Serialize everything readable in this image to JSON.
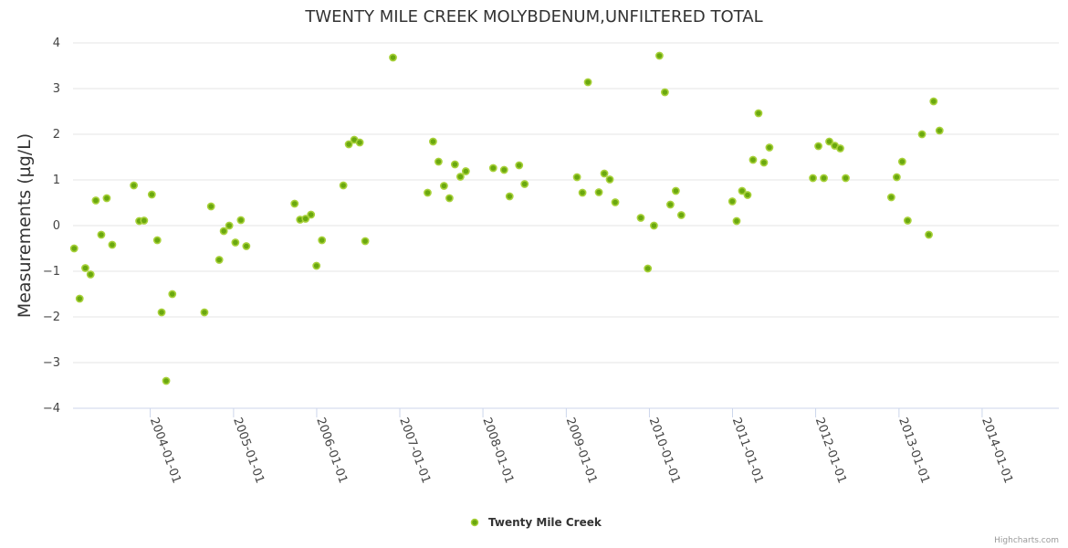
{
  "credits": "Highcharts.com",
  "colors": {
    "marker_fill": "#6aa80f",
    "marker_stroke": "#a8d13a",
    "grid": "#e6e6e6",
    "axis": "#ccd6eb"
  },
  "chart_data": {
    "type": "scatter",
    "title": "TWENTY MILE CREEK MOLYBDENUM,UNFILTERED TOTAL",
    "ylabel": "Measurements (µg/L)",
    "xlabel": "",
    "ylim": [
      -4,
      4
    ],
    "yticks": [
      "4",
      "3",
      "2",
      "1",
      "0",
      "−1",
      "−2",
      "−3",
      "−4"
    ],
    "xlim": [
      "2003-01-27",
      "2014-12-04"
    ],
    "xtick_labels": [
      "2004-01-01",
      "2005-01-01",
      "2006-01-01",
      "2007-01-01",
      "2008-01-01",
      "2009-01-01",
      "2010-01-01",
      "2011-01-01",
      "2012-01-01",
      "2013-01-01",
      "2014-01-01"
    ],
    "grid": true,
    "legend_position": "bottom-center",
    "series": [
      {
        "name": "Twenty Mile Creek",
        "points": [
          [
            "2003-02-01",
            -0.5
          ],
          [
            "2003-02-25",
            -1.6
          ],
          [
            "2003-03-22",
            -0.93
          ],
          [
            "2003-04-14",
            -1.07
          ],
          [
            "2003-05-07",
            0.55
          ],
          [
            "2003-05-31",
            -0.2
          ],
          [
            "2003-06-24",
            0.6
          ],
          [
            "2003-07-18",
            -0.42
          ],
          [
            "2003-10-21",
            0.88
          ],
          [
            "2003-11-14",
            0.1
          ],
          [
            "2003-12-05",
            0.11
          ],
          [
            "2004-01-08",
            0.68
          ],
          [
            "2004-02-01",
            -0.32
          ],
          [
            "2004-02-20",
            -1.9
          ],
          [
            "2004-03-11",
            -3.4
          ],
          [
            "2004-04-07",
            -1.5
          ],
          [
            "2004-08-26",
            -1.9
          ],
          [
            "2004-09-24",
            0.42
          ],
          [
            "2004-10-30",
            -0.75
          ],
          [
            "2004-11-19",
            -0.12
          ],
          [
            "2004-12-13",
            0.0
          ],
          [
            "2005-01-09",
            -0.37
          ],
          [
            "2005-02-02",
            0.12
          ],
          [
            "2005-02-26",
            -0.45
          ],
          [
            "2005-09-26",
            0.48
          ],
          [
            "2005-10-20",
            0.13
          ],
          [
            "2005-11-13",
            0.15
          ],
          [
            "2005-12-07",
            0.24
          ],
          [
            "2005-12-31",
            -0.88
          ],
          [
            "2006-01-24",
            -0.32
          ],
          [
            "2006-04-28",
            0.88
          ],
          [
            "2006-05-22",
            1.78
          ],
          [
            "2006-06-15",
            1.88
          ],
          [
            "2006-07-09",
            1.82
          ],
          [
            "2006-08-02",
            -0.34
          ],
          [
            "2006-12-02",
            3.68
          ],
          [
            "2007-05-03",
            0.72
          ],
          [
            "2007-05-27",
            1.84
          ],
          [
            "2007-06-20",
            1.4
          ],
          [
            "2007-07-14",
            0.87
          ],
          [
            "2007-08-07",
            0.6
          ],
          [
            "2007-08-31",
            1.34
          ],
          [
            "2007-09-24",
            1.07
          ],
          [
            "2007-10-18",
            1.19
          ],
          [
            "2008-02-15",
            1.26
          ],
          [
            "2008-04-03",
            1.22
          ],
          [
            "2008-04-27",
            0.64
          ],
          [
            "2008-06-08",
            1.32
          ],
          [
            "2008-07-02",
            0.91
          ],
          [
            "2009-02-17",
            1.06
          ],
          [
            "2009-03-13",
            0.72
          ],
          [
            "2009-04-06",
            3.14
          ],
          [
            "2009-05-24",
            0.73
          ],
          [
            "2009-06-17",
            1.14
          ],
          [
            "2009-07-11",
            1.01
          ],
          [
            "2009-08-04",
            0.51
          ],
          [
            "2009-11-24",
            0.17
          ],
          [
            "2009-12-25",
            -0.94
          ],
          [
            "2010-01-21",
            0.0
          ],
          [
            "2010-02-14",
            3.72
          ],
          [
            "2010-03-10",
            2.92
          ],
          [
            "2010-04-03",
            0.46
          ],
          [
            "2010-04-27",
            0.76
          ],
          [
            "2010-05-21",
            0.23
          ],
          [
            "2010-12-31",
            0.53
          ],
          [
            "2011-01-19",
            0.1
          ],
          [
            "2011-02-12",
            0.76
          ],
          [
            "2011-03-08",
            0.67
          ],
          [
            "2011-04-01",
            1.44
          ],
          [
            "2011-04-25",
            2.46
          ],
          [
            "2011-05-19",
            1.38
          ],
          [
            "2011-06-12",
            1.71
          ],
          [
            "2011-12-20",
            1.04
          ],
          [
            "2012-01-13",
            1.74
          ],
          [
            "2012-02-06",
            1.04
          ],
          [
            "2012-03-01",
            1.84
          ],
          [
            "2012-03-25",
            1.75
          ],
          [
            "2012-04-18",
            1.69
          ],
          [
            "2012-05-12",
            1.04
          ],
          [
            "2012-11-28",
            0.62
          ],
          [
            "2012-12-22",
            1.06
          ],
          [
            "2013-01-15",
            1.4
          ],
          [
            "2013-02-08",
            0.11
          ],
          [
            "2013-04-12",
            2.0
          ],
          [
            "2013-05-12",
            -0.2
          ],
          [
            "2013-06-02",
            2.72
          ],
          [
            "2013-06-28",
            2.08
          ]
        ]
      }
    ]
  }
}
